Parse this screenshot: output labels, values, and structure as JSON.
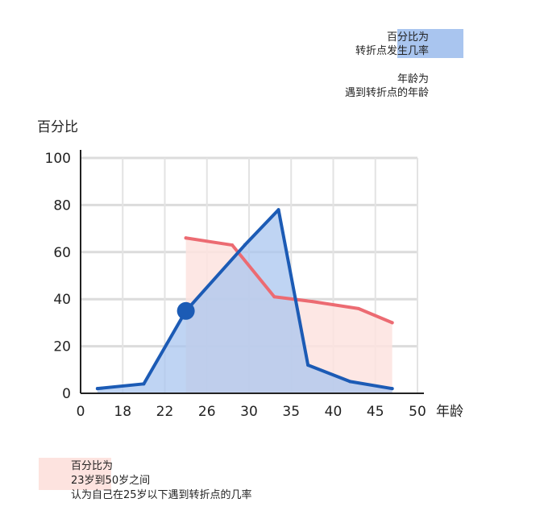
{
  "chart_data": {
    "type": "line",
    "ylabel": "百分比",
    "xlabel": "年龄",
    "ylim": [
      0,
      100
    ],
    "yticks": [
      0,
      20,
      40,
      60,
      80,
      100
    ],
    "xtick_labels": [
      "0",
      "18",
      "22",
      "26",
      "30",
      "35",
      "40",
      "45",
      "50"
    ],
    "grid": true,
    "series": [
      {
        "name": "百分比为 转折点发生几率",
        "color": "#1c5bb5",
        "fill": "#aac6ef",
        "x": [
          0.4,
          1.5,
          2.5,
          3.9,
          4.7,
          5.4,
          6.4,
          7.4
        ],
        "y": [
          2,
          4,
          35,
          63,
          78,
          12,
          5,
          2
        ]
      },
      {
        "name": "百分比为 23岁到50岁之间 认为自己在25岁以下遇到转折点的几率",
        "color": "#ec6b72",
        "fill": "#fde3df",
        "x": [
          2.5,
          3.6,
          4.6,
          5.5,
          6.6,
          7.4
        ],
        "y": [
          66,
          63,
          41,
          39,
          36,
          30
        ]
      }
    ],
    "marker": {
      "x": 2.5,
      "y": 35,
      "color": "#1c5bb5"
    }
  },
  "legend_top": {
    "percent_line1": "百分比为",
    "percent_line2": "转折点发生几率",
    "age_line1": "年龄为",
    "age_line2": "遇到转折点的年龄",
    "swatch_color": "#a9c5ef"
  },
  "legend_bottom": {
    "line1": "百分比为",
    "line2": "23岁到50岁之间",
    "line3": "认为自己在25岁以下遇到转折点的几率"
  }
}
